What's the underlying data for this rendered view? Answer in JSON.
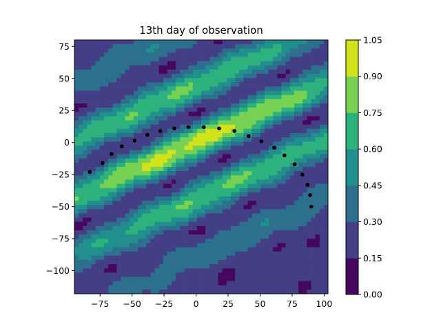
{
  "chart_data": {
    "type": "contourf",
    "title": "13th day of observation",
    "xlabel": "",
    "ylabel": "",
    "xlim": [
      -95,
      103
    ],
    "ylim": [
      -118,
      80
    ],
    "xticks": [
      -75,
      -50,
      -25,
      0,
      25,
      50,
      75,
      100
    ],
    "xtick_labels": [
      "−75",
      "−50",
      "−25",
      "0",
      "25",
      "50",
      "75",
      "100"
    ],
    "yticks": [
      75,
      50,
      25,
      0,
      -25,
      -50,
      -75,
      -100
    ],
    "ytick_labels": [
      "75",
      "50",
      "25",
      "0",
      "−25",
      "−50",
      "−75",
      "−100"
    ],
    "colormap": "viridis",
    "levels": [
      0.0,
      0.15,
      0.3,
      0.45,
      0.6,
      0.75,
      0.9,
      1.05
    ],
    "colorbar_ticks": [
      "0.00",
      "0.15",
      "0.30",
      "0.45",
      "0.60",
      "0.75",
      "0.90",
      "1.05"
    ],
    "level_colors": [
      "#46085c",
      "#433e85",
      "#2d708e",
      "#218f8d",
      "#2db27d",
      "#77d153",
      "#d2e21b"
    ],
    "field_description": "diagonal band ridges oriented up-right, peaks near (0,0) ~0.95",
    "scatter_points": {
      "color": "#000000",
      "x": [
        -83,
        -73,
        -66,
        -58,
        -48,
        -38,
        -28,
        -17,
        -6,
        6,
        18,
        30,
        41,
        51,
        61,
        69,
        77,
        83,
        87,
        89,
        90
      ],
      "y": [
        -23,
        -16,
        -9,
        -3,
        1.5,
        6,
        9,
        11,
        12,
        12,
        11,
        9,
        5,
        1,
        -4,
        -10,
        -17,
        -25,
        -33,
        -41,
        -50
      ]
    },
    "grid": false,
    "colorbar": "right"
  }
}
